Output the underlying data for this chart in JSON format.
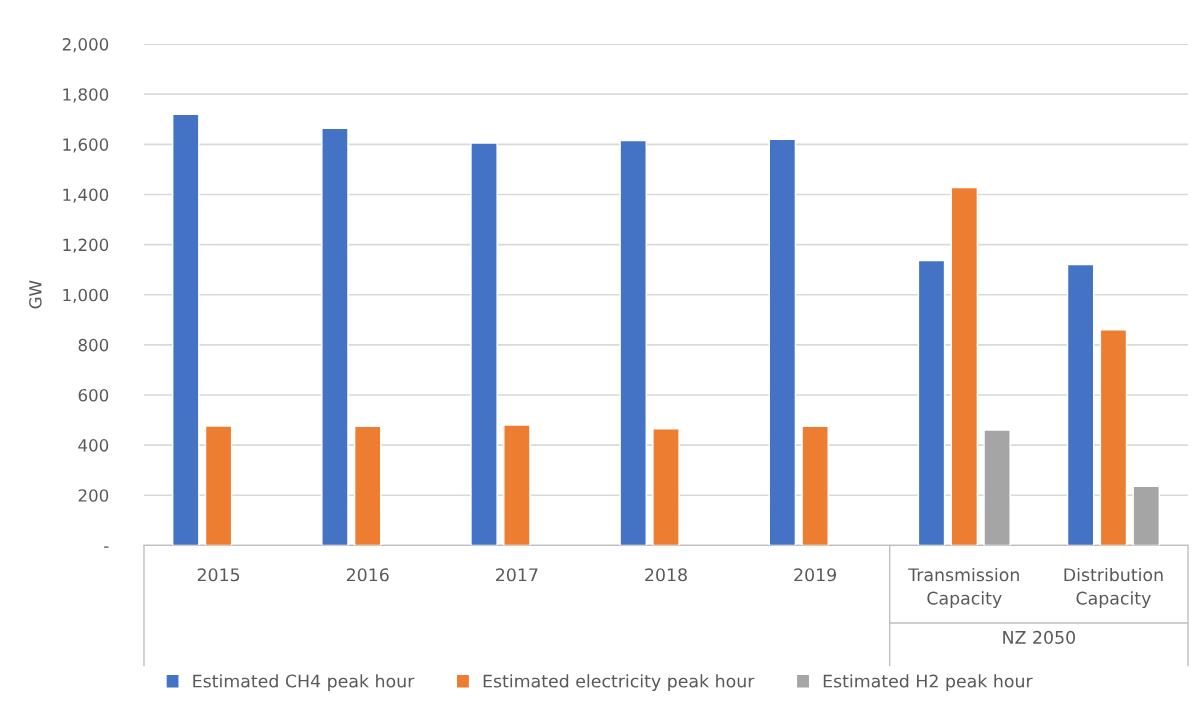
{
  "chart_data": {
    "type": "bar",
    "ylabel": "GW",
    "categories": [
      "2015",
      "2016",
      "2017",
      "2018",
      "2019",
      "Transmission\nCapacity",
      "Distribution\nCapacity"
    ],
    "series": [
      {
        "name": "Estimated CH4 peak hour",
        "color": "#4472c4",
        "values": [
          1720,
          1664,
          1605,
          1615,
          1620,
          1136,
          1120
        ]
      },
      {
        "name": "Estimated electricity peak hour",
        "color": "#ed7d31",
        "values": [
          476,
          475,
          480,
          465,
          475,
          1428,
          860
        ]
      },
      {
        "name": "Estimated H2 peak hour",
        "color": "#a5a5a5",
        "values": [
          null,
          null,
          null,
          null,
          null,
          460,
          236
        ]
      }
    ],
    "ylim": [
      0,
      2000
    ],
    "yticks": [
      {
        "value": 0,
        "label": "-"
      },
      {
        "value": 200,
        "label": "200"
      },
      {
        "value": 400,
        "label": "400"
      },
      {
        "value": 600,
        "label": "600"
      },
      {
        "value": 800,
        "label": "800"
      },
      {
        "value": 1000,
        "label": "1,000"
      },
      {
        "value": 1200,
        "label": "1,200"
      },
      {
        "value": 1400,
        "label": "1,400"
      },
      {
        "value": 1600,
        "label": "1,600"
      },
      {
        "value": 1800,
        "label": "1,800"
      },
      {
        "value": 2000,
        "label": "2,000"
      }
    ],
    "grid": "y",
    "legend": "bottom",
    "annotations": [
      "NZ 2050"
    ]
  }
}
